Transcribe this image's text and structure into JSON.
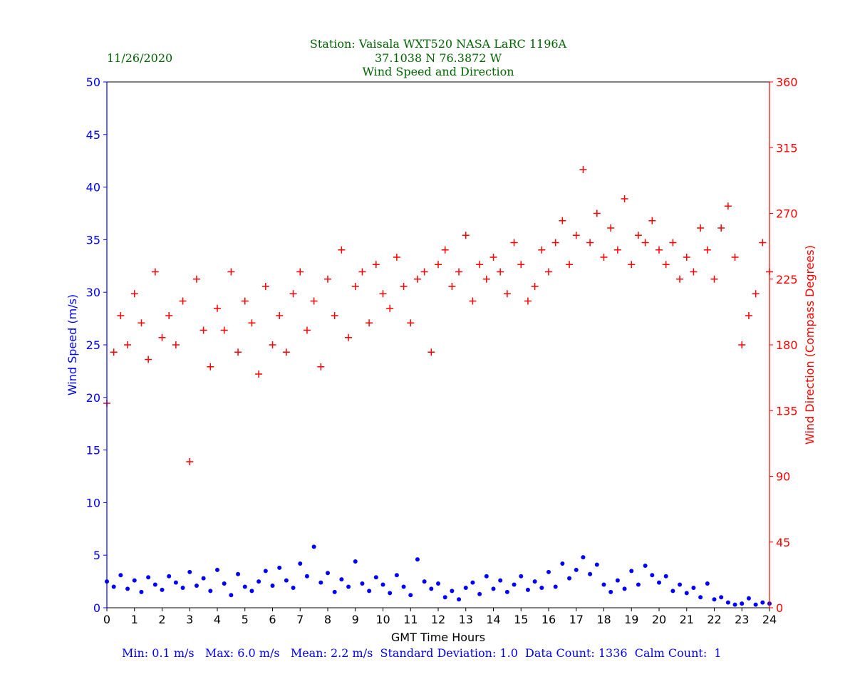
{
  "header": {
    "date": "11/26/2020",
    "station": "Station:  Vaisala WXT520  NASA LaRC 1196A",
    "coords": "37.1038 N 76.3872 W",
    "title": "Wind Speed and Direction"
  },
  "stats": "Min: 0.1 m/s   Max: 6.0 m/s   Mean: 2.2 m/s  Standard Deviation: 1.0  Data Count: 1336  Calm Count:  1",
  "chart_data": {
    "type": "scatter",
    "title": "Wind Speed and Direction",
    "xlabel": "GMT Time Hours",
    "ylabel": "Wind Speed (m/s)",
    "y2label": "Wind Direction (Compass Degrees)",
    "xlim": [
      0,
      24
    ],
    "ylim": [
      0,
      50
    ],
    "y2lim": [
      0,
      360
    ],
    "xticks": [
      "0",
      "1",
      "2",
      "3",
      "4",
      "5",
      "6",
      "7",
      "8",
      "9",
      "10",
      "11",
      "12",
      "13",
      "14",
      "15",
      "16",
      "17",
      "18",
      "19",
      "20",
      "21",
      "22",
      "23",
      "24"
    ],
    "yticks": [
      "0",
      "5",
      "10",
      "15",
      "20",
      "25",
      "30",
      "35",
      "40",
      "45",
      "50"
    ],
    "y2ticks": [
      "0",
      "45",
      "90",
      "135",
      "180",
      "225",
      "270",
      "315",
      "360"
    ],
    "x_start": 0,
    "x_step": 0.25,
    "series": [
      {
        "name": "Wind Speed",
        "axis": "left",
        "color": "#0000ff",
        "marker": "dot",
        "values": [
          2.5,
          2.0,
          3.1,
          1.8,
          2.6,
          1.5,
          2.9,
          2.2,
          1.7,
          3.0,
          2.4,
          1.9,
          3.4,
          2.1,
          2.8,
          1.6,
          3.6,
          2.3,
          1.2,
          3.2,
          2.0,
          1.6,
          2.5,
          3.5,
          2.1,
          3.8,
          2.6,
          1.9,
          4.2,
          3.0,
          5.8,
          2.4,
          3.3,
          1.5,
          2.7,
          2.0,
          4.4,
          2.3,
          1.6,
          2.9,
          2.2,
          1.4,
          3.1,
          2.0,
          1.2,
          4.6,
          2.5,
          1.8,
          2.3,
          1.0,
          1.6,
          0.8,
          1.9,
          2.4,
          1.3,
          3.0,
          1.8,
          2.6,
          1.5,
          2.2,
          3.0,
          1.7,
          2.5,
          1.9,
          3.4,
          2.0,
          4.2,
          2.8,
          3.6,
          4.8,
          3.2,
          4.1,
          2.2,
          1.5,
          2.6,
          1.8,
          3.5,
          2.2,
          4.0,
          3.1,
          2.4,
          3.0,
          1.6,
          2.2,
          1.4,
          1.9,
          1.0,
          2.3,
          0.8,
          1.0,
          0.5,
          0.3,
          0.4,
          0.9,
          0.3,
          0.5,
          0.4
        ]
      },
      {
        "name": "Wind Direction",
        "axis": "right",
        "color": "#ff0000",
        "marker": "plus",
        "values": [
          140,
          175,
          200,
          180,
          215,
          195,
          170,
          230,
          185,
          200,
          180,
          210,
          100,
          225,
          190,
          165,
          205,
          190,
          230,
          175,
          210,
          195,
          160,
          220,
          180,
          200,
          175,
          215,
          230,
          190,
          210,
          165,
          225,
          200,
          245,
          185,
          220,
          230,
          195,
          235,
          215,
          205,
          240,
          220,
          195,
          225,
          230,
          175,
          235,
          245,
          220,
          230,
          255,
          210,
          235,
          225,
          240,
          230,
          215,
          250,
          235,
          210,
          220,
          245,
          230,
          250,
          265,
          235,
          255,
          300,
          250,
          270,
          240,
          260,
          245,
          280,
          235,
          255,
          250,
          265,
          245,
          235,
          250,
          225,
          240,
          230,
          260,
          245,
          225,
          260,
          275,
          240,
          180,
          200,
          215,
          250,
          230
        ]
      }
    ],
    "grid": false,
    "legend": "none"
  }
}
